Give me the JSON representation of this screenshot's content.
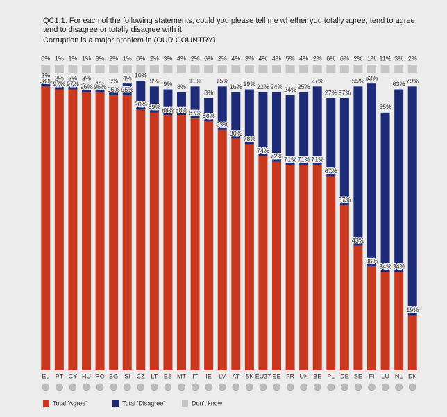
{
  "chart_data": {
    "type": "bar",
    "stacked": true,
    "title": "QC1.1. For each of the following statements, could you please tell me whether you totally agree, tend to agree, tend to disagree or totally disagree with it.",
    "subtitle": "Corruption is a major problem in (OUR COUNTRY)",
    "categories": [
      "EL",
      "PT",
      "CY",
      "HU",
      "RO",
      "BG",
      "SI",
      "CZ",
      "LT",
      "ES",
      "MT",
      "IT",
      "IE",
      "LV",
      "AT",
      "SK",
      "EU27",
      "EE",
      "FR",
      "UK",
      "BE",
      "PL",
      "DE",
      "SE",
      "FI",
      "LU",
      "NL",
      "DK"
    ],
    "legend": "bottom",
    "series": [
      {
        "name": "Total 'Agree'",
        "color": "#c9391f",
        "values": [
          98,
          97,
          97,
          96,
          96,
          95,
          95,
          90,
          89,
          88,
          88,
          87,
          86,
          83,
          80,
          78,
          74,
          72,
          71,
          71,
          71,
          67,
          57,
          43,
          36,
          34,
          34,
          19
        ],
        "value_labels": [
          "98%",
          "97%",
          "97%",
          "96%",
          "96%",
          "95%",
          "95%",
          "90%",
          "89%",
          "88%",
          "88%",
          "87%",
          "86%",
          "83%",
          "80%",
          "78%",
          "74%",
          "72%",
          "71%",
          "71%",
          "71%",
          "67%",
          "57%",
          "43%",
          "36%",
          "34%",
          "34%",
          "19%"
        ]
      },
      {
        "name": "Total 'Disagree'",
        "color": "#1d2b78",
        "values": [
          2,
          2,
          2,
          3,
          1,
          3,
          4,
          10,
          9,
          9,
          8,
          11,
          8,
          15,
          16,
          19,
          22,
          24,
          24,
          25,
          27,
          27,
          37,
          55,
          63,
          55,
          63,
          79
        ],
        "value_labels": [
          "2%",
          "2%",
          "2%",
          "3%",
          "1%",
          "3%",
          "4%",
          "10%",
          "9%",
          "9%",
          "8%",
          "11%",
          "8%",
          "15%",
          "16%",
          "19%",
          "22%",
          "24%",
          "24%",
          "25%",
          "27%",
          "27%",
          "37%",
          "55%",
          "63%",
          "55%",
          "63%",
          "79%"
        ]
      },
      {
        "name": "Don't know",
        "color": "#c6c6c6",
        "values": [
          0,
          1,
          1,
          1,
          3,
          2,
          1,
          0,
          2,
          3,
          4,
          2,
          6,
          2,
          4,
          3,
          4,
          4,
          5,
          4,
          2,
          6,
          6,
          2,
          1,
          11,
          3,
          2
        ],
        "value_labels": [
          "0%",
          "1%",
          "1%",
          "1%",
          "3%",
          "2%",
          "1%",
          "0%",
          "2%",
          "3%",
          "4%",
          "2%",
          "6%",
          "2%",
          "4%",
          "3%",
          "4%",
          "4%",
          "5%",
          "4%",
          "2%",
          "6%",
          "6%",
          "2%",
          "1%",
          "11%",
          "3%",
          "2%"
        ]
      }
    ]
  }
}
